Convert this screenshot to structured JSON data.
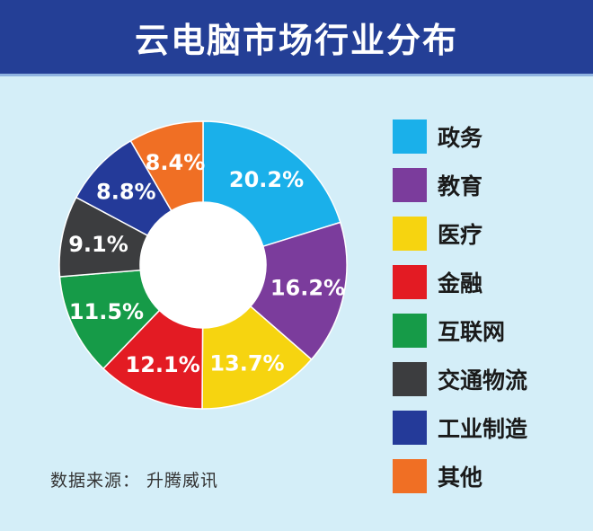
{
  "header": {
    "title": "云电脑市场行业分布"
  },
  "source": {
    "text": "数据来源： 升腾威讯"
  },
  "chart_data": {
    "type": "pie",
    "donut": true,
    "legend_position": "right",
    "categories": [
      "政务",
      "教育",
      "医疗",
      "金融",
      "互联网",
      "交通物流",
      "工业制造",
      "其他"
    ],
    "values": [
      20.2,
      16.2,
      13.7,
      12.1,
      11.5,
      9.1,
      8.8,
      8.4
    ],
    "labels": [
      "20.2%",
      "16.2%",
      "13.7%",
      "12.1%",
      "11.5%",
      "9.1%",
      "8.8%",
      "8.4%"
    ],
    "colors": [
      "#1ab0ea",
      "#7b3c9c",
      "#f6d410",
      "#e31b23",
      "#169b48",
      "#3c3d3f",
      "#243a99",
      "#f06f24"
    ]
  }
}
